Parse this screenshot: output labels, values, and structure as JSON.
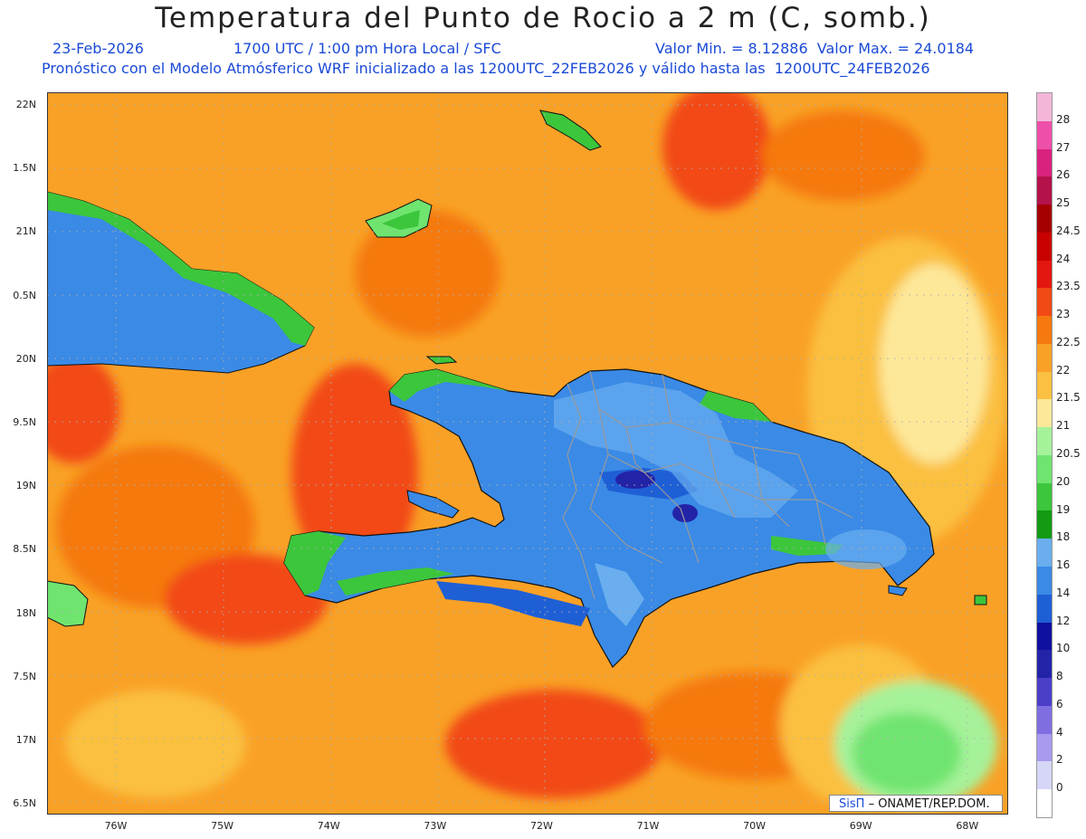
{
  "header": {
    "title": "Temperatura del Punto de Rocio a 2 m (C, somb.)",
    "date": "23-Feb-2026",
    "time_info": "1700 UTC / 1:00 pm Hora Local / SFC",
    "minmax": "Valor Min. = 8.12886  Valor Max. = 24.0184",
    "model_info": "Pronóstico con el Modelo Atmósferico WRF inicializado a las 1200UTC_22FEB2026 y válido hasta las  1200UTC_24FEB2026"
  },
  "axes": {
    "y_labels": [
      "22N",
      "1.5N",
      "21N",
      "0.5N",
      "20N",
      "9.5N",
      "19N",
      "8.5N",
      "18N",
      "7.5N",
      "17N",
      "6.5N"
    ],
    "x_labels": [
      "76W",
      "75W",
      "74W",
      "73W",
      "72W",
      "71W",
      "70W",
      "69W",
      "68W"
    ]
  },
  "credit": {
    "brand": "SisΠ",
    "text": "– ONAMET/REP.DOM."
  },
  "colorbar": {
    "labels": [
      "28",
      "27",
      "26",
      "25",
      "24.5",
      "24",
      "23.5",
      "23",
      "22.5",
      "22",
      "21.5",
      "21",
      "20.5",
      "20",
      "19",
      "18",
      "16",
      "14",
      "12",
      "10",
      "8",
      "6",
      "4",
      "2",
      "0"
    ],
    "colors": [
      "#f4b6d8",
      "#ee4fa8",
      "#d9227e",
      "#b3124a",
      "#a50000",
      "#c80000",
      "#e3170f",
      "#f24a14",
      "#f5790e",
      "#f9a126",
      "#fbc041",
      "#fde89a",
      "#a6f29a",
      "#6fe46f",
      "#3cc63c",
      "#149b14",
      "#6aaef0",
      "#3a8ae6",
      "#1f5fd6",
      "#1010a0",
      "#2323a8",
      "#4b3fc8",
      "#7f6ee0",
      "#a99af0",
      "#d6d6f6",
      "#ffffff"
    ],
    "colors_note": ""
  },
  "legend_colors": {
    "ocean_warm": "#f9a126",
    "ocean_hot": "#f24a14",
    "land_cool": "#3a8ae6",
    "coast_green": "#3cc63c"
  }
}
